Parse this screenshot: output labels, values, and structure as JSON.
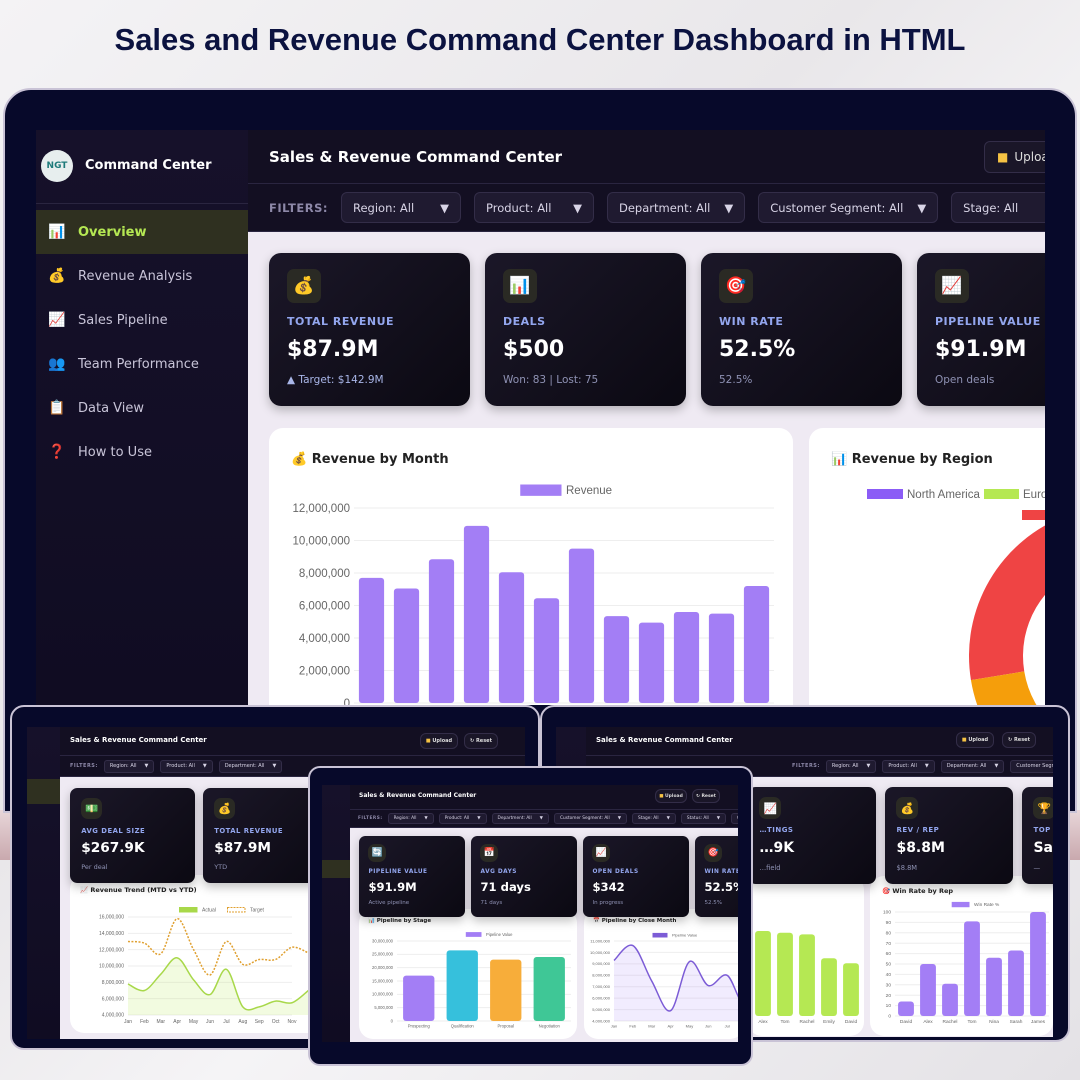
{
  "promo_title": "Sales and Revenue Command Center Dashboard in HTML",
  "app": {
    "logo_text": "NGT",
    "brand": "Command Center",
    "title": "Sales & Revenue Command Center",
    "buttons": {
      "upload": "Upload",
      "reset": "↻ Reset"
    },
    "filters_label": "FILTERS:",
    "filters": [
      "Region: All",
      "Product: All",
      "Department: All",
      "Customer Segment: All",
      "Stage: All",
      "Status: All",
      "Quarter: All"
    ],
    "nav": [
      {
        "label": "Overview",
        "icon": "bar-chart-icon",
        "active": true
      },
      {
        "label": "Revenue Analysis",
        "icon": "money-bag-icon"
      },
      {
        "label": "Sales Pipeline",
        "icon": "trend-up-icon"
      },
      {
        "label": "Team Performance",
        "icon": "people-icon"
      },
      {
        "label": "Data View",
        "icon": "clipboard-icon"
      },
      {
        "label": "How to Use",
        "icon": "question-icon"
      }
    ]
  },
  "colors": {
    "accent": "#a37ef5",
    "lime": "#b5e853",
    "active_nav": "#b5e853",
    "red": "#ef4444",
    "orange": "#f59e0b",
    "cyan": "#06b6d4",
    "teal": "#34c38f",
    "frame": "#07092a"
  },
  "main": {
    "kpis": [
      {
        "icon": "money-bag-icon",
        "label": "TOTAL REVENUE",
        "value": "$87.9M",
        "sub": "▲ Target: $142.9M"
      },
      {
        "icon": "bar-chart-icon",
        "label": "DEALS",
        "value": "$500",
        "sub": "Won: 83 | Lost: 75"
      },
      {
        "icon": "target-icon",
        "label": "WIN RATE",
        "value": "52.5%",
        "sub": "52.5%"
      },
      {
        "icon": "trend-up-icon",
        "label": "PIPELINE VALUE",
        "value": "$91.9M",
        "sub": "Open deals"
      }
    ],
    "revenue_card_title": "💰 Revenue by Month",
    "region_card_title": "📊 Revenue by Region"
  },
  "left_device": {
    "kpis": [
      {
        "icon": "cash-icon",
        "label": "AVG DEAL SIZE",
        "value": "$267.9K",
        "sub": "Per deal"
      },
      {
        "icon": "money-bag-icon",
        "label": "TOTAL REVENUE",
        "value": "$87.9M",
        "sub": "YTD"
      }
    ],
    "chart_title": "📈 Revenue Trend (MTD vs YTD)"
  },
  "right_device": {
    "kpis": [
      {
        "icon": "chart-icon",
        "label": "…TINGS",
        "value": "…9K",
        "sub": "…field"
      },
      {
        "icon": "money-bag-icon",
        "label": "REV / REP",
        "value": "$8.8M",
        "sub": "$8.8M"
      },
      {
        "icon": "trophy-icon",
        "label": "TOP PERFORMER",
        "value": "Sarah",
        "sub": "—"
      }
    ],
    "chart_title": "🎯 Win Rate by Rep"
  },
  "tablet": {
    "kpis": [
      {
        "icon": "pipeline-icon",
        "label": "PIPELINE VALUE",
        "value": "$91.9M",
        "sub": "Active pipeline"
      },
      {
        "icon": "calendar-icon",
        "label": "AVG DAYS",
        "value": "71 days",
        "sub": "71 days"
      },
      {
        "icon": "trend-up-icon",
        "label": "OPEN DEALS",
        "value": "$342",
        "sub": "In progress"
      },
      {
        "icon": "target-icon",
        "label": "WIN RATE",
        "value": "52.5%",
        "sub": "52.5%"
      }
    ],
    "stage_title": "📊 Pipeline by Stage",
    "close_title": "📅 Pipeline by Close Month"
  },
  "chart_data": [
    {
      "id": "revenue_by_month",
      "type": "bar",
      "title": "Revenue by Month",
      "categories": [
        "Jan",
        "Feb",
        "Mar",
        "Apr",
        "May",
        "Jun",
        "Jul",
        "Aug",
        "Sep",
        "Oct",
        "Nov",
        "Dec"
      ],
      "series": [
        {
          "name": "Revenue",
          "values": [
            7700000,
            7050000,
            8850000,
            10900000,
            8050000,
            6450000,
            9500000,
            5350000,
            4950000,
            5600000,
            5500000,
            7200000
          ]
        }
      ],
      "ylim": [
        0,
        12000000
      ],
      "yticks": [
        "0",
        "2,000,000",
        "4,000,000",
        "6,000,000",
        "8,000,000",
        "10,000,000",
        "12,000,000"
      ],
      "grid": true,
      "legend": "top"
    },
    {
      "id": "revenue_by_region",
      "type": "pie",
      "title": "Revenue by Region",
      "legend": [
        "North America",
        "Europe"
      ],
      "legend_placement": "top",
      "slices": [
        {
          "color": "#ef4444",
          "value": 22
        },
        {
          "color": "#f59e0b",
          "value": 22
        },
        {
          "color": "#06b6d4",
          "value": 8
        }
      ]
    },
    {
      "id": "revenue_trend",
      "type": "line",
      "title": "Revenue Trend (MTD vs YTD)",
      "categories": [
        "Jan",
        "Feb",
        "Mar",
        "Apr",
        "May",
        "Jun",
        "Jul",
        "Aug",
        "Sep",
        "Oct",
        "Nov",
        "Dec"
      ],
      "series": [
        {
          "name": "Actual",
          "values": [
            7800000,
            7000000,
            9000000,
            11000000,
            8300000,
            6500000,
            9600000,
            5000000,
            5000000,
            5700000,
            5500000,
            7000000
          ]
        },
        {
          "name": "Target",
          "values": [
            13000000,
            12800000,
            11500000,
            15800000,
            12000000,
            8900000,
            13000000,
            10200000,
            10800000,
            10800000,
            12300000,
            11600000
          ]
        }
      ],
      "ylim": [
        4000000,
        16000000
      ],
      "yticks": [
        "4,000,000",
        "6,000,000",
        "8,000,000",
        "10,000,000",
        "12,000,000",
        "14,000,000",
        "16,000,000"
      ],
      "legend": "top"
    },
    {
      "id": "pipeline_by_stage",
      "type": "bar",
      "title": "Pipeline by Stage",
      "categories": [
        "Prospecting",
        "Qualification",
        "Proposal",
        "Negotiation"
      ],
      "series": [
        {
          "name": "Pipeline Value",
          "values": [
            17000000,
            26500000,
            23000000,
            24000000
          ]
        }
      ],
      "colors": [
        "#a37ef5",
        "#36c0dc",
        "#f7ad3a",
        "#3fc796"
      ],
      "ylim": [
        0,
        30000000
      ],
      "yticks": [
        "0",
        "5,000,000",
        "10,000,000",
        "15,000,000",
        "20,000,000",
        "25,000,000",
        "30,000,000"
      ],
      "legend": "top"
    },
    {
      "id": "pipeline_by_close_month",
      "type": "area",
      "title": "Pipeline by Close Month",
      "categories": [
        "Jan",
        "Feb",
        "Mar",
        "Apr",
        "May",
        "Jun",
        "Jul",
        "Aug",
        "Sep"
      ],
      "series": [
        {
          "name": "Pipeline Value",
          "values": [
            9300000,
            10600000,
            7500000,
            4900000,
            9200000,
            7100000,
            8000000,
            5500000,
            10800000
          ]
        }
      ],
      "ylim": [
        4000000,
        11000000
      ],
      "yticks": [
        "4,000,000",
        "5,000,000",
        "6,000,000",
        "7,000,000",
        "8,000,000",
        "9,000,000",
        "10,000,000",
        "11,000,000"
      ],
      "legend": "top"
    },
    {
      "id": "rep_revenue_partial",
      "type": "bar",
      "categories": [
        "Alex",
        "Tom",
        "Rachel",
        "Emily",
        "David"
      ],
      "series": [
        {
          "values": [
            100,
            98,
            96,
            68,
            62
          ]
        }
      ]
    },
    {
      "id": "win_rate_by_rep",
      "type": "bar",
      "title": "Win Rate by Rep",
      "categories": [
        "David",
        "Alex",
        "Rachel",
        "Tom",
        "Nina",
        "Sarah",
        "James"
      ],
      "series": [
        {
          "name": "Win Rate %",
          "values": [
            14,
            50,
            31,
            91,
            56,
            63,
            100
          ]
        }
      ],
      "ylim": [
        0,
        100
      ],
      "yticks": [
        "0",
        "10",
        "20",
        "30",
        "40",
        "50",
        "60",
        "70",
        "80",
        "90",
        "100"
      ],
      "legend": "top"
    }
  ]
}
